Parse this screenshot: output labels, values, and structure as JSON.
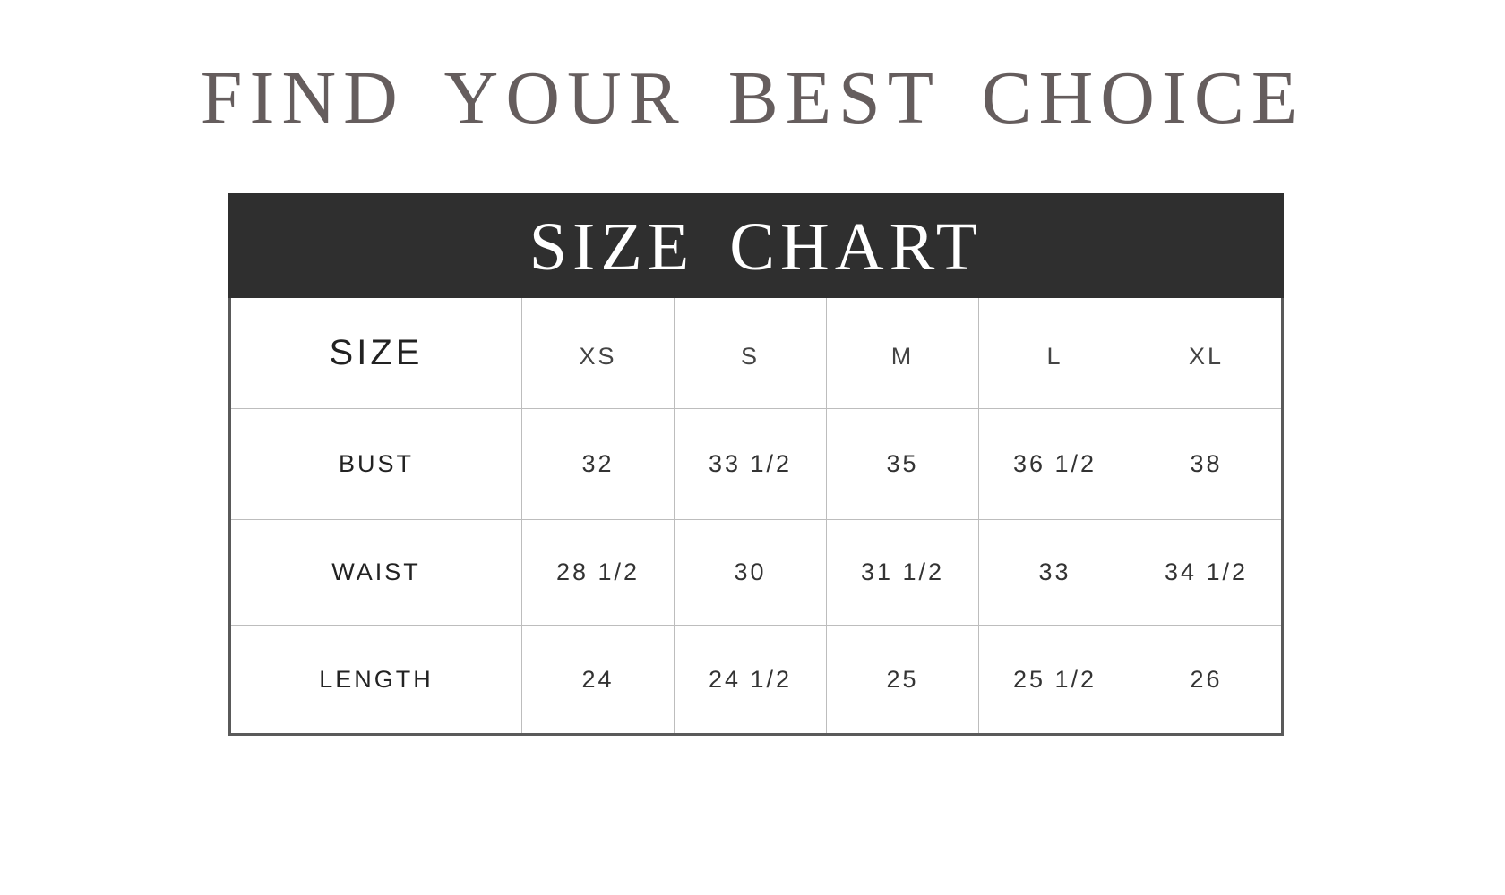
{
  "title": "FIND YOUR BEST CHOICE",
  "chart_header": "SIZE CHART",
  "table": {
    "header": [
      "SIZE",
      "XS",
      "S",
      "M",
      "L",
      "XL"
    ],
    "rows": [
      [
        "BUST",
        "32",
        "33 1/2",
        "35",
        "36 1/2",
        "38"
      ],
      [
        "WAIST",
        "28 1/2",
        "30",
        "31 1/2",
        "33",
        "34 1/2"
      ],
      [
        "LENGTH",
        "24",
        "24 1/2",
        "25",
        "25 1/2",
        "26"
      ]
    ]
  },
  "colors": {
    "title": "#655d5d",
    "header_bg": "#2f2f2f"
  }
}
